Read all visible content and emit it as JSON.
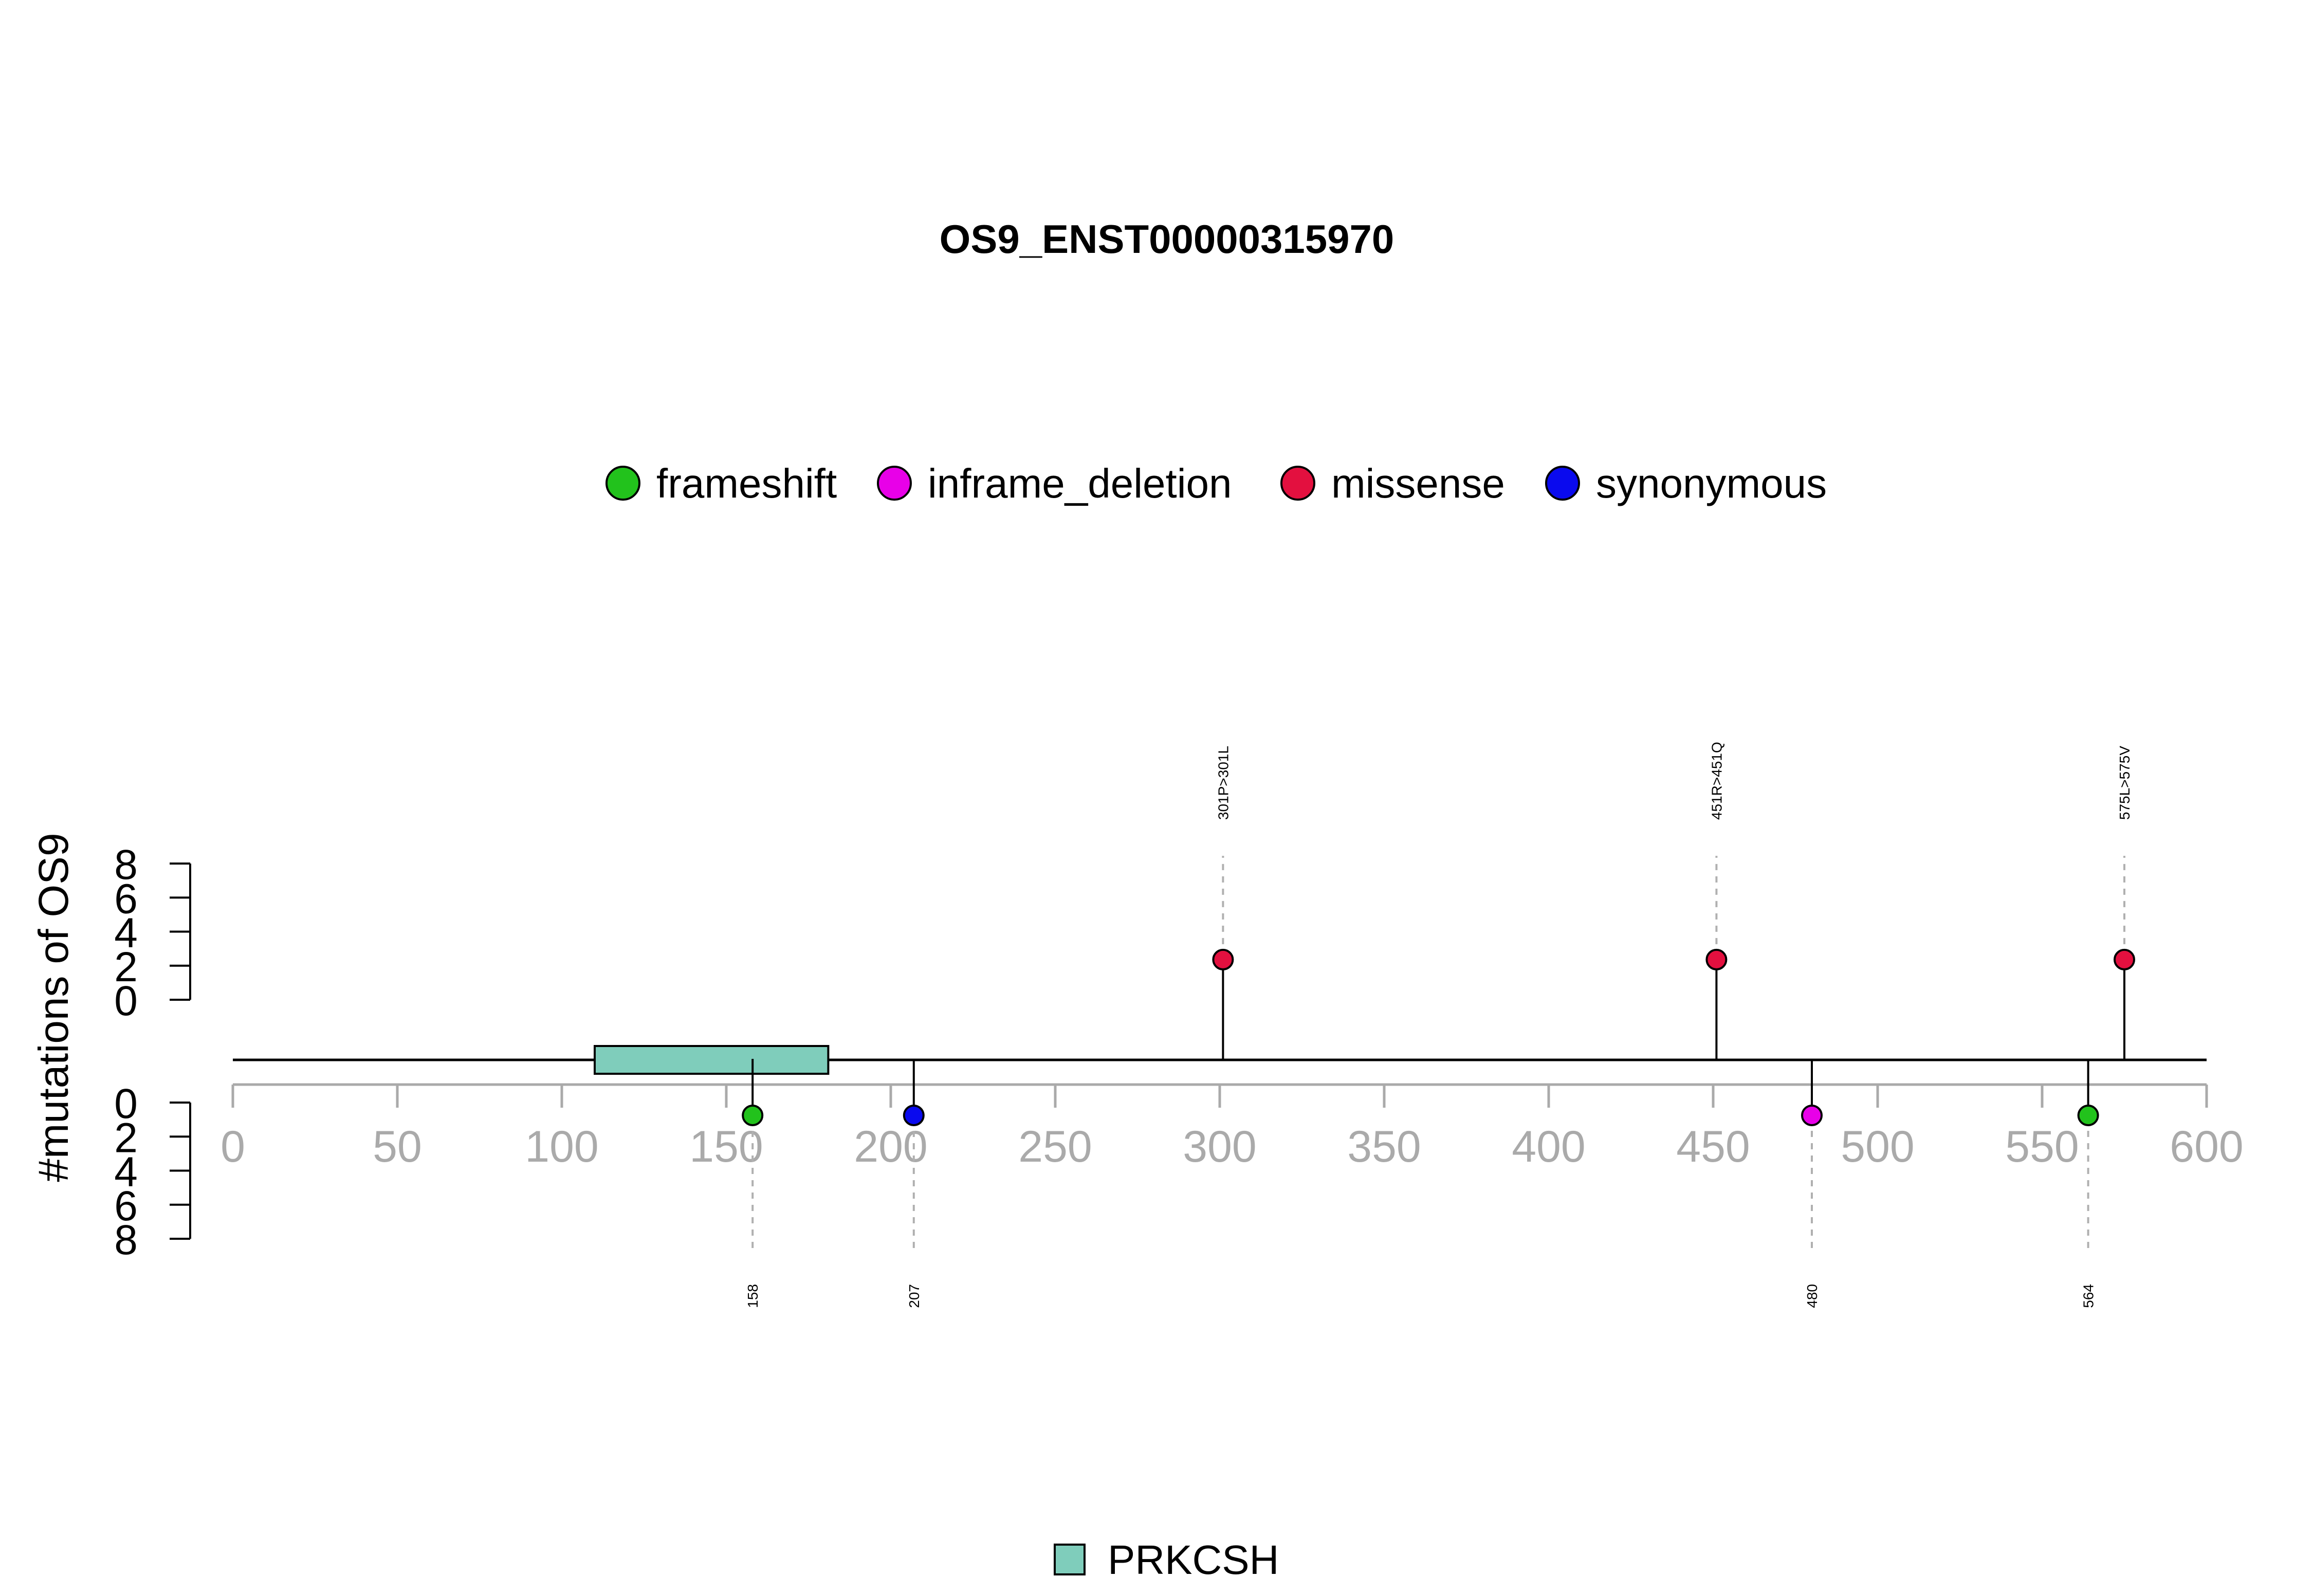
{
  "chart_data": {
    "type": "lollipop",
    "title": "OS9_ENST00000315970",
    "ylabel": "#mutations of OS9",
    "xlim": [
      0,
      600
    ],
    "x_ticks": [
      "0",
      "50",
      "100",
      "150",
      "200",
      "250",
      "300",
      "350",
      "400",
      "450",
      "500",
      "550",
      "600"
    ],
    "y_ticks_upper": [
      "8",
      "6",
      "4",
      "2",
      "0"
    ],
    "y_ticks_lower": [
      "0",
      "2",
      "4",
      "6",
      "8"
    ],
    "ylim": [
      0,
      8
    ],
    "legend_position": "top",
    "legend": [
      {
        "name": "frameshift",
        "color": "#22c21c"
      },
      {
        "name": "inframe_deletion",
        "color": "#e800e8"
      },
      {
        "name": "missense",
        "color": "#e3103f"
      },
      {
        "name": "synonymous",
        "color": "#0a0aee"
      }
    ],
    "domains": [
      {
        "name": "PRKCSH",
        "start": 110,
        "end": 181,
        "color": "#7fcdbb"
      }
    ],
    "domain_legend_position": "bottom",
    "mutations": [
      {
        "position": 301,
        "count": 1,
        "type": "missense",
        "side": "top",
        "label": "301P>301L"
      },
      {
        "position": 451,
        "count": 1,
        "type": "missense",
        "side": "top",
        "label": "451R>451Q"
      },
      {
        "position": 575,
        "count": 1,
        "type": "missense",
        "side": "top",
        "label": "575L>575V"
      },
      {
        "position": 158,
        "count": 1,
        "type": "frameshift",
        "side": "bottom",
        "label": "158"
      },
      {
        "position": 207,
        "count": 1,
        "type": "synonymous",
        "side": "bottom",
        "label": "207"
      },
      {
        "position": 480,
        "count": 1,
        "type": "inframe_deletion",
        "side": "bottom",
        "label": "480"
      },
      {
        "position": 564,
        "count": 1,
        "type": "frameshift",
        "side": "bottom",
        "label": "564"
      }
    ]
  }
}
